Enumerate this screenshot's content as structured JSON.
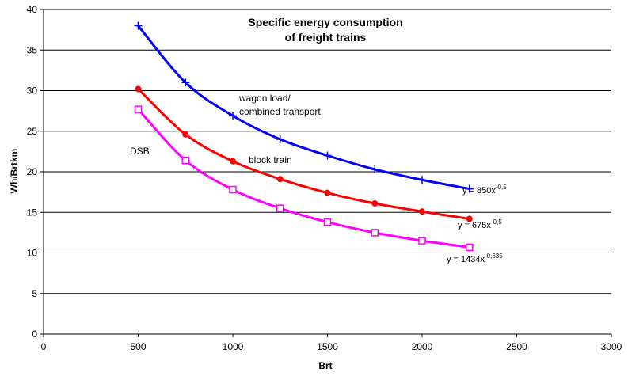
{
  "chart_data": {
    "type": "line",
    "title": [
      "Specific energy consumption",
      "of freight trains"
    ],
    "xlabel": "Brt",
    "ylabel": "Wh/Brtkm",
    "xlim": [
      0,
      3000
    ],
    "ylim": [
      0,
      40
    ],
    "xticks": [
      "0",
      "500",
      "1000",
      "1500",
      "2000",
      "2500",
      "3000"
    ],
    "yticks": [
      "0",
      "5",
      "10",
      "15",
      "20",
      "25",
      "30",
      "35",
      "40"
    ],
    "grid": "horizontal",
    "series": [
      {
        "label": "wagon load/ combined transport",
        "color": "#0000ff",
        "marker": "plus",
        "equation": "y = 850x-0,5",
        "points": [
          [
            500,
            38.0
          ],
          [
            750,
            31.0
          ],
          [
            1000,
            26.9
          ],
          [
            1250,
            24.0
          ],
          [
            1500,
            22.0
          ],
          [
            1750,
            20.3
          ],
          [
            2000,
            19.0
          ],
          [
            2250,
            17.9
          ]
        ]
      },
      {
        "label": "block train",
        "color": "#ff0000",
        "marker": "dot",
        "equation": "y = 675x-0,5",
        "points": [
          [
            500,
            30.2
          ],
          [
            750,
            24.6
          ],
          [
            1000,
            21.3
          ],
          [
            1250,
            19.1
          ],
          [
            1500,
            17.4
          ],
          [
            1750,
            16.1
          ],
          [
            2000,
            15.1
          ],
          [
            2250,
            14.2
          ]
        ]
      },
      {
        "label": "DSB",
        "color": "#ff00ff",
        "marker": "square",
        "equation": "y = 1434x-0,635",
        "points": [
          [
            500,
            27.7
          ],
          [
            750,
            21.4
          ],
          [
            1000,
            17.8
          ],
          [
            1250,
            15.5
          ],
          [
            1500,
            13.8
          ],
          [
            1750,
            12.5
          ],
          [
            2000,
            11.5
          ],
          [
            2250,
            10.7
          ]
        ]
      }
    ],
    "annotations": {
      "wagon_line1": "wagon load/",
      "wagon_line2": "combined transport",
      "block": "block train",
      "dsb": "DSB",
      "eq1_base": "y = 850x",
      "eq1_exp": "-0,5",
      "eq2_base": "y = 675x",
      "eq2_exp": "-0,5",
      "eq3_base": "y = 1434x",
      "eq3_exp": "-0,635"
    }
  }
}
